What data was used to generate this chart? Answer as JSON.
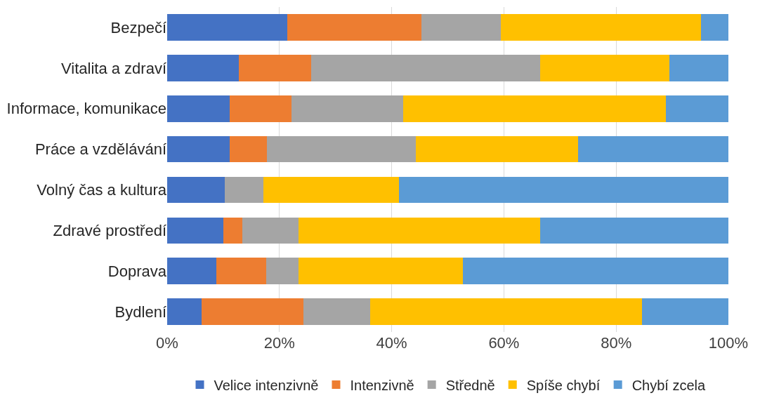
{
  "chart_data": {
    "type": "bar",
    "orientation": "horizontal",
    "stacked": true,
    "categories": [
      "Bezpečí",
      "Vitalita a zdraví",
      "Informace, komunikace",
      "Práce a vzdělávání",
      "Volný čas a kultura",
      "Zdravé prostředí",
      "Doprava",
      "Bydlení"
    ],
    "series": [
      {
        "name": "Velice intenzivně",
        "color": "#4472c4",
        "values": [
          21.4,
          12.8,
          11.1,
          11.1,
          10.3,
          10,
          8.8,
          6.1
        ]
      },
      {
        "name": "Intenzivně",
        "color": "#ed7d31",
        "values": [
          23.9,
          12.8,
          11.1,
          6.7,
          0,
          3.4,
          8.8,
          18.2
        ]
      },
      {
        "name": "Středně",
        "color": "#a5a5a5",
        "values": [
          14.1,
          40.9,
          19.9,
          26.5,
          6.9,
          10,
          5.8,
          11.9
        ]
      },
      {
        "name": "Spíše chybí",
        "color": "#ffc000",
        "values": [
          35.7,
          23,
          46.7,
          28.9,
          24.1,
          43.1,
          29.3,
          48.4
        ]
      },
      {
        "name": "Chybí zcela",
        "color": "#5b9bd5",
        "values": [
          4.9,
          10.5,
          11.2,
          26.8,
          58.7,
          33.5,
          47.3,
          15.4
        ]
      }
    ],
    "xlim": [
      0,
      100
    ],
    "xticks": [
      {
        "value": 0,
        "label": "0%"
      },
      {
        "value": 20,
        "label": "20%"
      },
      {
        "value": 40,
        "label": "40%"
      },
      {
        "value": 60,
        "label": "60%"
      },
      {
        "value": 80,
        "label": "80%"
      },
      {
        "value": 100,
        "label": "100%"
      }
    ],
    "grid": "x",
    "legend": "bottom"
  }
}
